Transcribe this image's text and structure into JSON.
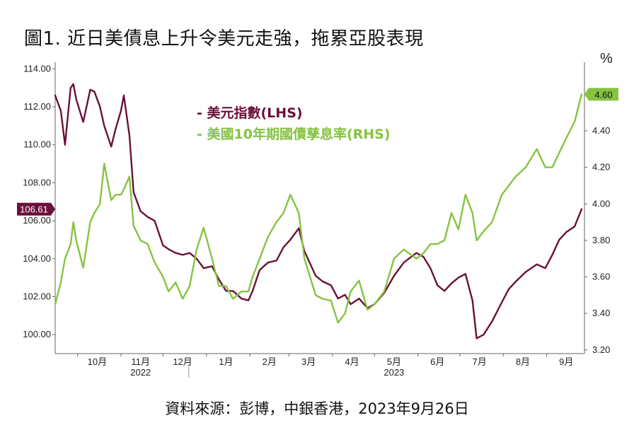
{
  "title": "圖1. 近日美債息上升令美元走強，拖累亞股表現",
  "source": "資料來源：彭博，中銀香港，2023年9月26日",
  "chart_data": {
    "type": "line",
    "unit_right": "%",
    "left_axis": {
      "ylim": [
        99.0,
        114.2
      ],
      "ticks": [
        "114.00",
        "112.00",
        "110.00",
        "108.00",
        "106.00",
        "104.00",
        "102.00",
        "100.00"
      ],
      "tick_values": [
        114,
        112,
        110,
        108,
        106,
        104,
        102,
        100
      ]
    },
    "right_axis": {
      "ylim": [
        3.18,
        4.76
      ],
      "ticks": [
        "4.60",
        "4.40",
        "4.20",
        "4.00",
        "3.80",
        "3.60",
        "3.40",
        "3.20"
      ],
      "tick_values": [
        4.6,
        4.4,
        4.2,
        4.0,
        3.8,
        3.6,
        3.4,
        3.2
      ]
    },
    "x_axis": {
      "month_labels": [
        "10月",
        "11月",
        "12月",
        "1月",
        "2月",
        "3月",
        "4月",
        "5月",
        "6月",
        "7月",
        "8月",
        "9月"
      ],
      "year_labels": [
        {
          "label": "2022",
          "under": "11月"
        },
        {
          "label": "2023",
          "under": "5月"
        }
      ],
      "x_start": "2022-09-15",
      "x_end": "2023-09-28"
    },
    "legend": {
      "position": "top-center",
      "entries": [
        {
          "name": "- 美元指數(LHS)",
          "color": "#6b1039"
        },
        {
          "name": "- 美國10年期國債孳息率(RHS)",
          "color": "#86c341"
        }
      ]
    },
    "last_value_tags": {
      "left": {
        "text": "106.61",
        "color": "#6b1039"
      },
      "right": {
        "text": "4.60",
        "color": "#86c341"
      }
    },
    "series": [
      {
        "name": "美元指數(LHS)",
        "axis": "left",
        "color": "#6b1039",
        "x": [
          "2022-09-15",
          "2022-09-19",
          "2022-09-22",
          "2022-09-26",
          "2022-09-28",
          "2022-09-30",
          "2022-10-05",
          "2022-10-10",
          "2022-10-13",
          "2022-10-17",
          "2022-10-20",
          "2022-10-25",
          "2022-10-28",
          "2022-11-01",
          "2022-11-03",
          "2022-11-07",
          "2022-11-10",
          "2022-11-15",
          "2022-11-20",
          "2022-11-25",
          "2022-12-01",
          "2022-12-05",
          "2022-12-10",
          "2022-12-15",
          "2022-12-20",
          "2022-12-25",
          "2022-12-30",
          "2023-01-05",
          "2023-01-10",
          "2023-01-15",
          "2023-01-20",
          "2023-01-26",
          "2023-01-31",
          "2023-02-03",
          "2023-02-08",
          "2023-02-14",
          "2023-02-20",
          "2023-02-25",
          "2023-03-02",
          "2023-03-08",
          "2023-03-12",
          "2023-03-20",
          "2023-03-25",
          "2023-03-31",
          "2023-04-05",
          "2023-04-10",
          "2023-04-14",
          "2023-04-20",
          "2023-04-26",
          "2023-05-01",
          "2023-05-08",
          "2023-05-15",
          "2023-05-22",
          "2023-05-31",
          "2023-06-05",
          "2023-06-10",
          "2023-06-15",
          "2023-06-20",
          "2023-06-25",
          "2023-06-30",
          "2023-07-05",
          "2023-07-10",
          "2023-07-13",
          "2023-07-18",
          "2023-07-24",
          "2023-07-31",
          "2023-08-05",
          "2023-08-10",
          "2023-08-17",
          "2023-08-25",
          "2023-08-31",
          "2023-09-05",
          "2023-09-10",
          "2023-09-15",
          "2023-09-21",
          "2023-09-26"
        ],
        "values": [
          112.6,
          111.8,
          110.0,
          113.0,
          113.2,
          112.4,
          111.2,
          112.9,
          112.8,
          112.0,
          111.0,
          109.9,
          110.8,
          111.8,
          112.6,
          110.5,
          107.5,
          106.5,
          106.2,
          106.0,
          104.7,
          104.5,
          104.3,
          104.2,
          104.3,
          104.0,
          103.5,
          103.6,
          102.9,
          102.3,
          102.3,
          101.9,
          101.8,
          102.3,
          103.4,
          103.8,
          103.9,
          104.6,
          105.0,
          105.6,
          104.4,
          103.1,
          102.8,
          102.6,
          101.9,
          102.1,
          101.6,
          101.9,
          101.4,
          101.6,
          102.2,
          103.1,
          103.8,
          104.3,
          104.1,
          103.5,
          102.6,
          102.3,
          102.7,
          103.0,
          103.2,
          101.8,
          99.8,
          100.0,
          100.7,
          101.7,
          102.4,
          102.8,
          103.3,
          103.7,
          103.5,
          104.2,
          105.0,
          105.4,
          105.7,
          106.61
        ]
      },
      {
        "name": "美國10年期國債孳息率(RHS)",
        "axis": "right",
        "color": "#86c341",
        "x": [
          "2022-09-15",
          "2022-09-19",
          "2022-09-22",
          "2022-09-26",
          "2022-09-28",
          "2022-09-30",
          "2022-10-05",
          "2022-10-10",
          "2022-10-13",
          "2022-10-17",
          "2022-10-20",
          "2022-10-25",
          "2022-10-28",
          "2022-11-01",
          "2022-11-03",
          "2022-11-07",
          "2022-11-10",
          "2022-11-15",
          "2022-11-20",
          "2022-11-25",
          "2022-12-01",
          "2022-12-05",
          "2022-12-10",
          "2022-12-15",
          "2022-12-20",
          "2022-12-25",
          "2022-12-30",
          "2023-01-05",
          "2023-01-10",
          "2023-01-15",
          "2023-01-20",
          "2023-01-26",
          "2023-01-31",
          "2023-02-03",
          "2023-02-08",
          "2023-02-14",
          "2023-02-20",
          "2023-02-25",
          "2023-03-02",
          "2023-03-08",
          "2023-03-12",
          "2023-03-20",
          "2023-03-25",
          "2023-03-31",
          "2023-04-05",
          "2023-04-10",
          "2023-04-14",
          "2023-04-20",
          "2023-04-26",
          "2023-05-01",
          "2023-05-08",
          "2023-05-15",
          "2023-05-22",
          "2023-05-31",
          "2023-06-05",
          "2023-06-10",
          "2023-06-15",
          "2023-06-20",
          "2023-06-25",
          "2023-06-30",
          "2023-07-05",
          "2023-07-10",
          "2023-07-13",
          "2023-07-18",
          "2023-07-24",
          "2023-07-31",
          "2023-08-05",
          "2023-08-10",
          "2023-08-17",
          "2023-08-25",
          "2023-08-31",
          "2023-09-05",
          "2023-09-10",
          "2023-09-15",
          "2023-09-21",
          "2023-09-26"
        ],
        "values": [
          3.45,
          3.57,
          3.7,
          3.78,
          3.9,
          3.8,
          3.65,
          3.9,
          3.95,
          4.0,
          4.22,
          4.02,
          4.05,
          4.05,
          4.08,
          4.15,
          3.88,
          3.8,
          3.78,
          3.68,
          3.6,
          3.52,
          3.57,
          3.48,
          3.55,
          3.75,
          3.87,
          3.7,
          3.55,
          3.55,
          3.48,
          3.52,
          3.52,
          3.6,
          3.7,
          3.82,
          3.9,
          3.95,
          4.05,
          3.95,
          3.7,
          3.5,
          3.48,
          3.47,
          3.35,
          3.4,
          3.52,
          3.58,
          3.42,
          3.45,
          3.52,
          3.7,
          3.75,
          3.7,
          3.73,
          3.78,
          3.78,
          3.8,
          3.95,
          3.86,
          4.05,
          3.95,
          3.8,
          3.85,
          3.9,
          4.05,
          4.1,
          4.15,
          4.2,
          4.3,
          4.2,
          4.2,
          4.28,
          4.36,
          4.45,
          4.6
        ]
      }
    ]
  }
}
